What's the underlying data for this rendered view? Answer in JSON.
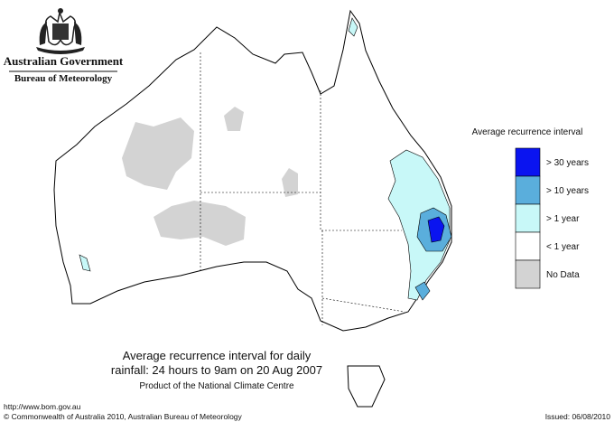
{
  "header": {
    "government": "Australian Government",
    "bureau": "Bureau of Meteorology"
  },
  "legend": {
    "title": "Average recurrence interval",
    "items": [
      {
        "label": "> 30 years",
        "color": "#0a14f0"
      },
      {
        "label": "> 10 years",
        "color": "#5aaedc"
      },
      {
        "label": "> 1 year",
        "color": "#c8f8f8"
      },
      {
        "label": "< 1 year",
        "color": "#ffffff"
      },
      {
        "label": "No Data",
        "color": "#d3d3d3"
      }
    ]
  },
  "caption": {
    "line1": "Average recurrence interval for daily",
    "line2": "rainfall: 24 hours to 9am on 20 Aug 2007",
    "line3": "Product of the National Climate Centre"
  },
  "footer": {
    "url": "http://www.bom.gov.au",
    "copyright": "© Commonwealth of Australia 2010, Australian Bureau of Meteorology",
    "issued": "Issued: 06/08/2010"
  }
}
